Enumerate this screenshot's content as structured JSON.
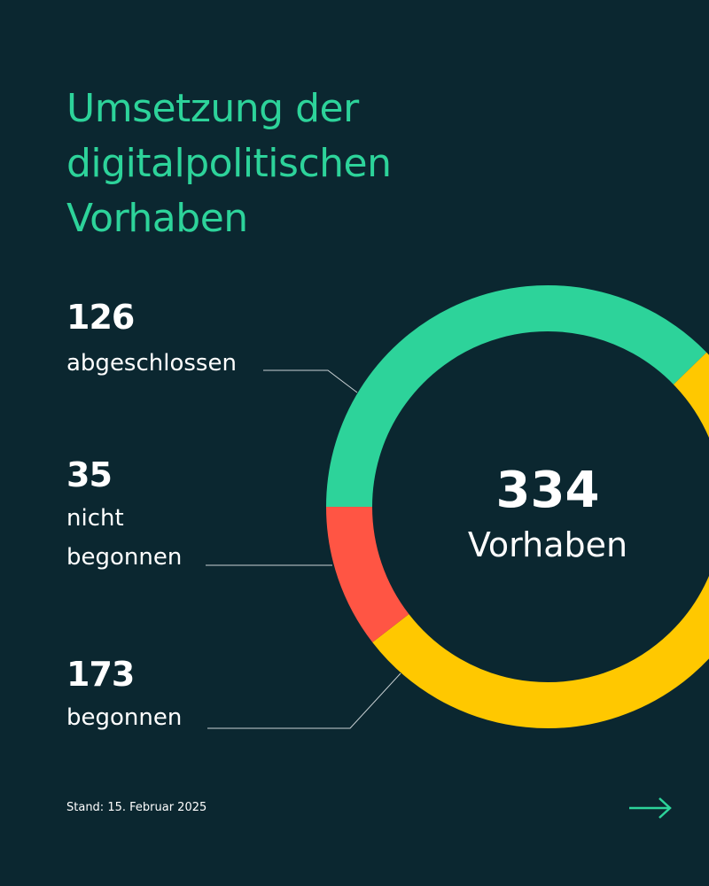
{
  "chart_data": {
    "type": "donut",
    "title": "Umsetzung der digitalpolitischen Vorhaben",
    "categories": [
      "abgeschlossen",
      "nicht begonnen",
      "begonnen"
    ],
    "values": [
      126,
      35,
      173
    ],
    "colors": [
      "#2dd39a",
      "#ff5544",
      "#ffc800"
    ],
    "center_value": 334,
    "center_label": "Vorhaben",
    "footnote": "Stand: 15. Februar 2025"
  }
}
